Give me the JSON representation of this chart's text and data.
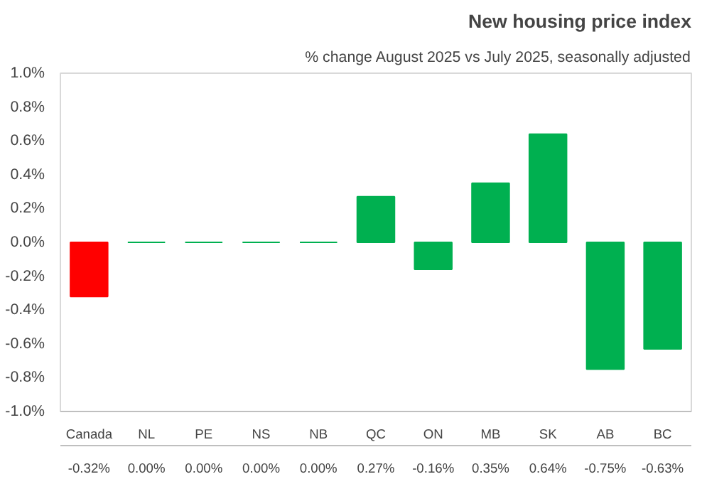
{
  "chart_data": {
    "type": "bar",
    "title": "New housing price index",
    "subtitle": "% change August 2025 vs July 2025, seasonally adjusted",
    "categories": [
      "Canada",
      "NL",
      "PE",
      "NS",
      "NB",
      "QC",
      "ON",
      "MB",
      "SK",
      "AB",
      "BC"
    ],
    "values": [
      -0.32,
      0.0,
      0.0,
      0.0,
      0.0,
      0.27,
      -0.16,
      0.35,
      0.64,
      -0.75,
      -0.63
    ],
    "colors": [
      "#ff0000",
      "#00b050",
      "#00b050",
      "#00b050",
      "#00b050",
      "#00b050",
      "#00b050",
      "#00b050",
      "#00b050",
      "#00b050",
      "#00b050"
    ],
    "value_labels": [
      "-0.32%",
      "0.00%",
      "0.00%",
      "0.00%",
      "0.00%",
      "0.27%",
      "-0.16%",
      "0.35%",
      "0.64%",
      "-0.75%",
      "-0.63%"
    ],
    "ylim": [
      -1.0,
      1.0
    ],
    "yticks": [
      {
        "value": -1.0,
        "label": "-1.0%"
      },
      {
        "value": -0.8,
        "label": "-0.8%"
      },
      {
        "value": -0.6,
        "label": "-0.6%"
      },
      {
        "value": -0.4,
        "label": "-0.4%"
      },
      {
        "value": -0.2,
        "label": "-0.2%"
      },
      {
        "value": 0.0,
        "label": "0.0%"
      },
      {
        "value": 0.2,
        "label": "0.2%"
      },
      {
        "value": 0.4,
        "label": "0.4%"
      },
      {
        "value": 0.6,
        "label": "0.6%"
      },
      {
        "value": 0.8,
        "label": "0.8%"
      },
      {
        "value": 1.0,
        "label": "1.0%"
      }
    ]
  }
}
